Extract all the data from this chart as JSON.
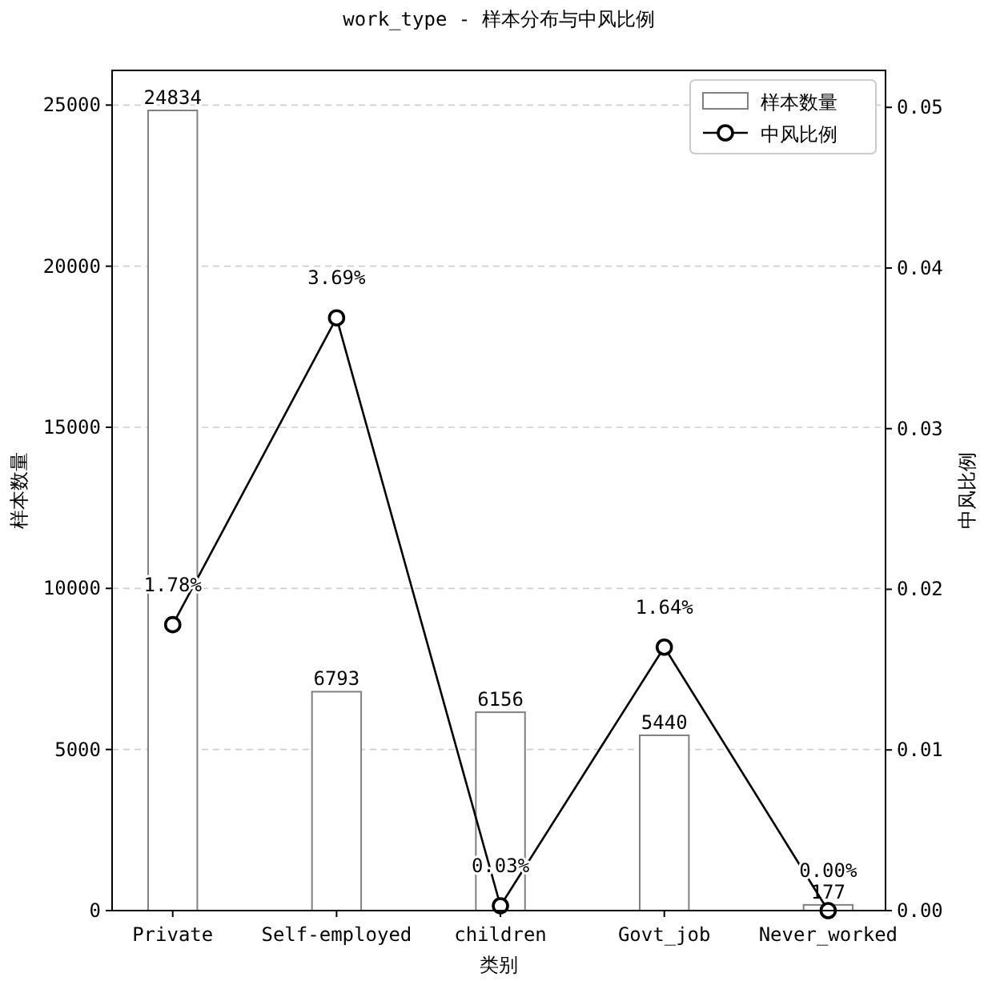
{
  "chart_data": {
    "type": "bar",
    "title": "work_type - 样本分布与中风比例",
    "xlabel": "类别",
    "ylabel": "样本数量",
    "y2label": "中风比例",
    "categories": [
      "Private",
      "Self-employed",
      "children",
      "Govt_job",
      "Never_worked"
    ],
    "series": [
      {
        "name": "样本数量",
        "color": "#808080",
        "values": [
          24834,
          6793,
          6156,
          5440,
          177
        ],
        "value_labels": [
          "24834",
          "6793",
          "6156",
          "5440",
          "177"
        ]
      },
      {
        "name": "中风比例",
        "type": "line",
        "axis": "y2",
        "color": "#000000",
        "marker": "circle",
        "values": [
          0.0178,
          0.0369,
          0.0003,
          0.0164,
          0.0
        ],
        "value_labels": [
          "1.78%",
          "3.69%",
          "0.03%",
          "1.64%",
          "0.00%"
        ]
      }
    ],
    "ylim": [
      0,
      26076
    ],
    "yticks": [
      0,
      5000,
      10000,
      15000,
      20000,
      25000
    ],
    "y2lim": [
      0,
      0.0523
    ],
    "y2ticks": [
      {
        "value": 0,
        "label": "0.00"
      },
      {
        "value": 0.01,
        "label": "0.01"
      },
      {
        "value": 0.02,
        "label": "0.02"
      },
      {
        "value": 0.03,
        "label": "0.03"
      },
      {
        "value": 0.04,
        "label": "0.04"
      },
      {
        "value": 0.05,
        "label": "0.05"
      }
    ],
    "grid": "y",
    "legend": "top right"
  }
}
